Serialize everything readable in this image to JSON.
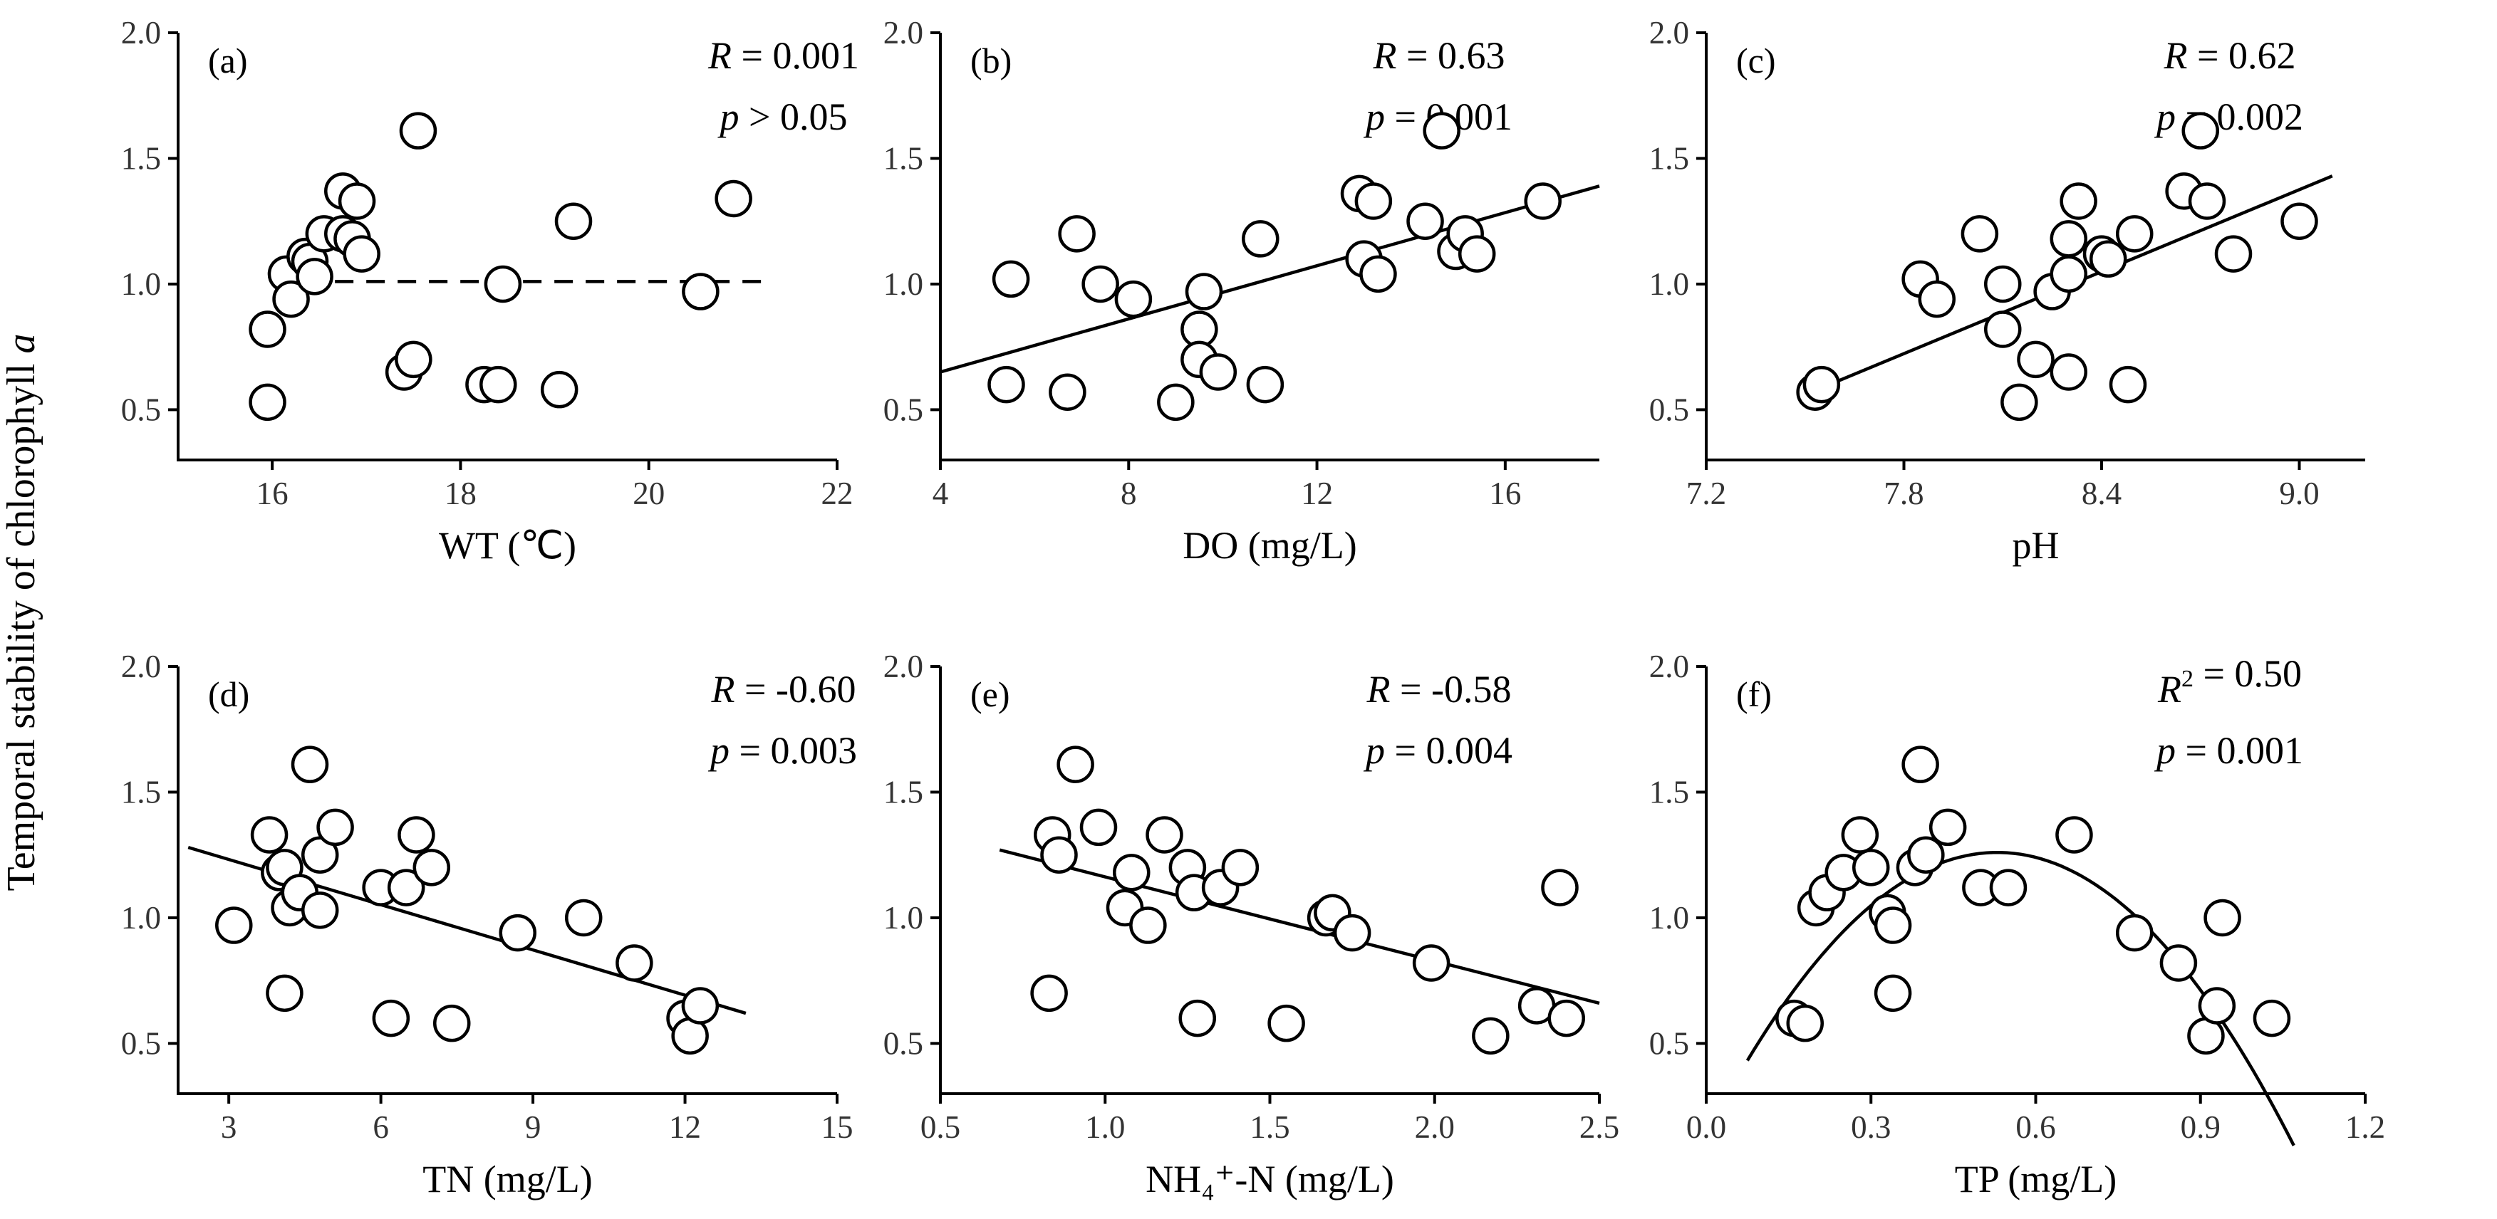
{
  "ylabel_main": "Temporal stability of chlorophyll",
  "ylabel_italic": "a",
  "chart_data": [
    {
      "type": "scatter",
      "panel": "(a)",
      "xlabel": "WT (℃)",
      "xlim": [
        15,
        22
      ],
      "ylim": [
        0.3,
        2.0
      ],
      "xticks": [
        16,
        18,
        20,
        22
      ],
      "yticks": [
        0.5,
        1.0,
        1.5,
        2.0
      ],
      "xtick_labels": [
        "16",
        "18",
        "20",
        "22"
      ],
      "ytick_labels": [
        "0.5",
        "1.0",
        "1.5",
        "2.0"
      ],
      "stats": [
        {
          "var": "R",
          "op": " = ",
          "val": "0.001"
        },
        {
          "var": "p",
          "op": " > ",
          "val": "0.05"
        }
      ],
      "fit": {
        "kind": "horizontal-dashed",
        "y": 1.01,
        "x_range": [
          16.0,
          21.3
        ]
      },
      "points": [
        [
          15.95,
          0.53
        ],
        [
          15.95,
          0.82
        ],
        [
          16.15,
          1.04
        ],
        [
          16.2,
          0.94
        ],
        [
          16.35,
          1.11
        ],
        [
          16.4,
          1.09
        ],
        [
          16.45,
          1.03
        ],
        [
          16.55,
          1.2
        ],
        [
          16.75,
          1.2
        ],
        [
          16.75,
          1.37
        ],
        [
          16.85,
          1.18
        ],
        [
          16.9,
          1.33
        ],
        [
          16.95,
          1.12
        ],
        [
          17.55,
          1.61
        ],
        [
          17.4,
          0.65
        ],
        [
          17.5,
          0.7
        ],
        [
          18.25,
          0.6
        ],
        [
          18.4,
          0.6
        ],
        [
          18.45,
          1.0
        ],
        [
          19.05,
          0.58
        ],
        [
          19.2,
          1.25
        ],
        [
          20.55,
          0.97
        ],
        [
          20.9,
          1.34
        ]
      ]
    },
    {
      "type": "scatter",
      "panel": "(b)",
      "xlabel": "DO (mg/L)",
      "xlim": [
        4,
        18
      ],
      "ylim": [
        0.3,
        2.0
      ],
      "xticks": [
        4,
        8,
        12,
        16
      ],
      "yticks": [
        0.5,
        1.0,
        1.5,
        2.0
      ],
      "xtick_labels": [
        "4",
        "8",
        "12",
        "16"
      ],
      "ytick_labels": [
        "0.5",
        "1.0",
        "1.5",
        "2.0"
      ],
      "stats": [
        {
          "var": "R",
          "op": " = ",
          "val": "0.63"
        },
        {
          "var": "p",
          "op": " = ",
          "val": "0.001"
        }
      ],
      "fit": {
        "kind": "linear",
        "points": [
          [
            4.0,
            0.65
          ],
          [
            18.0,
            1.39
          ]
        ]
      },
      "points": [
        [
          5.4,
          0.6
        ],
        [
          5.5,
          1.02
        ],
        [
          6.7,
          0.57
        ],
        [
          6.9,
          1.2
        ],
        [
          7.4,
          1.0
        ],
        [
          8.1,
          0.94
        ],
        [
          9.0,
          0.53
        ],
        [
          9.5,
          0.82
        ],
        [
          9.5,
          0.7
        ],
        [
          9.6,
          0.97
        ],
        [
          9.9,
          0.65
        ],
        [
          10.8,
          1.18
        ],
        [
          10.9,
          0.6
        ],
        [
          12.9,
          1.36
        ],
        [
          13.0,
          1.1
        ],
        [
          13.2,
          1.33
        ],
        [
          13.3,
          1.04
        ],
        [
          14.3,
          1.25
        ],
        [
          14.65,
          1.61
        ],
        [
          14.95,
          1.13
        ],
        [
          15.15,
          1.2
        ],
        [
          15.4,
          1.12
        ],
        [
          16.8,
          1.33
        ]
      ]
    },
    {
      "type": "scatter",
      "panel": "(c)",
      "xlabel": "pH",
      "xlim": [
        7.2,
        9.2
      ],
      "ylim": [
        0.3,
        2.0
      ],
      "xticks": [
        7.2,
        7.8,
        8.4,
        9.0
      ],
      "yticks": [
        0.5,
        1.0,
        1.5,
        2.0
      ],
      "xtick_labels": [
        "7.2",
        "7.8",
        "8.4",
        "9.0"
      ],
      "ytick_labels": [
        "0.5",
        "1.0",
        "1.5",
        "2.0"
      ],
      "stats": [
        {
          "var": "R",
          "op": " = ",
          "val": "0.62"
        },
        {
          "var": "p",
          "op": " = ",
          "val": "0.002"
        }
      ],
      "fit": {
        "kind": "linear",
        "points": [
          [
            7.5,
            0.56
          ],
          [
            9.1,
            1.43
          ]
        ]
      },
      "points": [
        [
          7.53,
          0.57
        ],
        [
          7.55,
          0.6
        ],
        [
          7.85,
          1.02
        ],
        [
          7.9,
          0.94
        ],
        [
          8.03,
          1.2
        ],
        [
          8.1,
          1.0
        ],
        [
          8.1,
          0.82
        ],
        [
          8.15,
          0.53
        ],
        [
          8.2,
          0.7
        ],
        [
          8.25,
          0.97
        ],
        [
          8.3,
          0.65
        ],
        [
          8.3,
          1.18
        ],
        [
          8.3,
          1.04
        ],
        [
          8.33,
          1.33
        ],
        [
          8.4,
          1.12
        ],
        [
          8.42,
          1.1
        ],
        [
          8.48,
          0.6
        ],
        [
          8.5,
          1.2
        ],
        [
          8.65,
          1.37
        ],
        [
          8.7,
          1.61
        ],
        [
          8.72,
          1.33
        ],
        [
          8.8,
          1.12
        ],
        [
          9.0,
          1.25
        ]
      ]
    },
    {
      "type": "scatter",
      "panel": "(d)",
      "xlabel": "TN (mg/L)",
      "xlim": [
        2,
        15
      ],
      "ylim": [
        0.3,
        2.0
      ],
      "xticks": [
        3,
        6,
        9,
        12,
        15
      ],
      "yticks": [
        0.5,
        1.0,
        1.5,
        2.0
      ],
      "xtick_labels": [
        "3",
        "6",
        "9",
        "12",
        "15"
      ],
      "ytick_labels": [
        "0.5",
        "1.0",
        "1.5",
        "2.0"
      ],
      "stats": [
        {
          "var": "R",
          "op": " = ",
          "val": "-0.60"
        },
        {
          "var": "p",
          "op": " = ",
          "val": "0.003"
        }
      ],
      "fit": {
        "kind": "linear",
        "points": [
          [
            2.2,
            1.28
          ],
          [
            13.2,
            0.62
          ]
        ]
      },
      "points": [
        [
          3.1,
          0.97
        ],
        [
          3.8,
          1.33
        ],
        [
          4.0,
          1.18
        ],
        [
          4.1,
          1.2
        ],
        [
          4.1,
          0.7
        ],
        [
          4.2,
          1.04
        ],
        [
          4.4,
          1.1
        ],
        [
          4.6,
          1.61
        ],
        [
          4.8,
          1.25
        ],
        [
          4.8,
          1.03
        ],
        [
          5.1,
          1.36
        ],
        [
          6.0,
          1.12
        ],
        [
          6.2,
          0.6
        ],
        [
          6.5,
          1.12
        ],
        [
          6.7,
          1.33
        ],
        [
          7.0,
          1.2
        ],
        [
          7.4,
          0.58
        ],
        [
          8.7,
          0.94
        ],
        [
          10.0,
          1.0
        ],
        [
          11.0,
          0.82
        ],
        [
          12.0,
          0.6
        ],
        [
          12.1,
          0.53
        ],
        [
          12.3,
          0.65
        ]
      ]
    },
    {
      "type": "scatter",
      "panel": "(e)",
      "xlabel": "NH₄⁺-N (mg/L)",
      "xlim": [
        0.5,
        2.5
      ],
      "ylim": [
        0.3,
        2.0
      ],
      "xticks": [
        0.5,
        1.0,
        1.5,
        2.0,
        2.5
      ],
      "yticks": [
        0.5,
        1.0,
        1.5,
        2.0
      ],
      "xtick_labels": [
        "0.5",
        "1.0",
        "1.5",
        "2.0",
        "2.5"
      ],
      "ytick_labels": [
        "0.5",
        "1.0",
        "1.5",
        "2.0"
      ],
      "stats": [
        {
          "var": "R",
          "op": " = ",
          "val": "-0.58"
        },
        {
          "var": "p",
          "op": " = ",
          "val": "0.004"
        }
      ],
      "fit": {
        "kind": "linear",
        "points": [
          [
            0.68,
            1.27
          ],
          [
            2.5,
            0.66
          ]
        ]
      },
      "points": [
        [
          0.83,
          0.7
        ],
        [
          0.84,
          1.33
        ],
        [
          0.86,
          1.25
        ],
        [
          0.91,
          1.61
        ],
        [
          0.98,
          1.36
        ],
        [
          1.06,
          1.04
        ],
        [
          1.08,
          1.18
        ],
        [
          1.13,
          0.97
        ],
        [
          1.18,
          1.33
        ],
        [
          1.25,
          1.2
        ],
        [
          1.27,
          1.1
        ],
        [
          1.28,
          0.6
        ],
        [
          1.35,
          1.12
        ],
        [
          1.41,
          1.2
        ],
        [
          1.55,
          0.58
        ],
        [
          1.67,
          1.0
        ],
        [
          1.69,
          1.02
        ],
        [
          1.75,
          0.94
        ],
        [
          1.99,
          0.82
        ],
        [
          2.17,
          0.53
        ],
        [
          2.31,
          0.65
        ],
        [
          2.38,
          1.12
        ],
        [
          2.4,
          0.6
        ]
      ]
    },
    {
      "type": "scatter",
      "panel": "(f)",
      "xlabel": "TP (mg/L)",
      "xlim": [
        0.0,
        1.2
      ],
      "ylim": [
        0.3,
        2.0
      ],
      "xticks": [
        0.0,
        0.3,
        0.6,
        0.9,
        1.2
      ],
      "yticks": [
        0.5,
        1.0,
        1.5,
        2.0
      ],
      "xtick_labels": [
        "0.0",
        "0.3",
        "0.6",
        "0.9",
        "1.2"
      ],
      "ytick_labels": [
        "0.5",
        "1.0",
        "1.5",
        "2.0"
      ],
      "stats": [
        {
          "var": "R",
          "sup": "2",
          "op": " = ",
          "val": "0.50"
        },
        {
          "var": "p",
          "op": " = ",
          "val": "0.001"
        }
      ],
      "fit": {
        "kind": "quadratic",
        "vertex_x": 0.53,
        "vertex_y": 1.26,
        "a": -4.0,
        "x_range": [
          0.075,
          1.07
        ]
      },
      "points": [
        [
          0.16,
          0.6
        ],
        [
          0.18,
          0.58
        ],
        [
          0.2,
          1.04
        ],
        [
          0.22,
          1.1
        ],
        [
          0.25,
          1.18
        ],
        [
          0.28,
          1.33
        ],
        [
          0.3,
          1.2
        ],
        [
          0.33,
          1.02
        ],
        [
          0.34,
          0.97
        ],
        [
          0.34,
          0.7
        ],
        [
          0.38,
          1.2
        ],
        [
          0.39,
          1.61
        ],
        [
          0.4,
          1.25
        ],
        [
          0.44,
          1.36
        ],
        [
          0.5,
          1.12
        ],
        [
          0.55,
          1.12
        ],
        [
          0.67,
          1.33
        ],
        [
          0.78,
          0.94
        ],
        [
          0.86,
          0.82
        ],
        [
          0.91,
          0.53
        ],
        [
          0.93,
          0.65
        ],
        [
          0.94,
          1.0
        ],
        [
          1.03,
          0.6
        ]
      ]
    }
  ]
}
